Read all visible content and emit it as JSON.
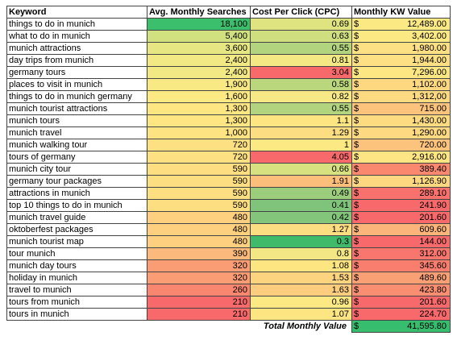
{
  "headers": {
    "keyword": "Keyword",
    "searches": "Avg. Monthly Searches",
    "cpc": "Cost Per Click (CPC)",
    "value": "Monthly KW Value"
  },
  "currency_symbol": "$",
  "rows": [
    {
      "keyword": "things to do in munich",
      "searches": "18,100",
      "cpc": "0.69",
      "value": "12,489.00",
      "searches_color": "#3cbf6d",
      "cpc_color": "#dfe380",
      "value_color": "#fbe984"
    },
    {
      "keyword": "what to do in munich",
      "searches": "5,400",
      "cpc": "0.63",
      "value": "3,402.00",
      "searches_color": "#d2e180",
      "cpc_color": "#cfdf80",
      "value_color": "#fbe984"
    },
    {
      "keyword": "munich attractions",
      "searches": "3,600",
      "cpc": "0.55",
      "value": "1,980.00",
      "searches_color": "#e6e682",
      "cpc_color": "#b3d47e",
      "value_color": "#fde083"
    },
    {
      "keyword": "day trips from munich",
      "searches": "2,400",
      "cpc": "0.81",
      "value": "1,944.00",
      "searches_color": "#f2e884",
      "cpc_color": "#f4e884",
      "value_color": "#fde083"
    },
    {
      "keyword": "germany tours",
      "searches": "2,400",
      "cpc": "3.04",
      "value": "7,296.00",
      "searches_color": "#f2e884",
      "cpc_color": "#f8696b",
      "value_color": "#fde783"
    },
    {
      "keyword": "places to visit in munich",
      "searches": "1,900",
      "cpc": "0.58",
      "value": "1,102.00",
      "searches_color": "#f9e984",
      "cpc_color": "#bbd77e",
      "value_color": "#fdd881"
    },
    {
      "keyword": "things to do in munich germany",
      "searches": "1,600",
      "cpc": "0.82",
      "value": "1,312,00",
      "searches_color": "#fde983",
      "cpc_color": "#f6e884",
      "value_color": "#fdda81"
    },
    {
      "keyword": "munich tourist attractions",
      "searches": "1,300",
      "cpc": "0.55",
      "value": "715.00",
      "searches_color": "#fee683",
      "cpc_color": "#b3d47e",
      "value_color": "#fcc37d"
    },
    {
      "keyword": "munich tours",
      "searches": "1,300",
      "cpc": "1.1",
      "value": "1,430.00",
      "searches_color": "#fee683",
      "cpc_color": "#fde582",
      "value_color": "#fddb81"
    },
    {
      "keyword": "munich travel",
      "searches": "1,000",
      "cpc": "1.29",
      "value": "1,290.00",
      "searches_color": "#fee382",
      "cpc_color": "#fddd81",
      "value_color": "#fdd981"
    },
    {
      "keyword": "munich walking tour",
      "searches": "720",
      "cpc": "1",
      "value": "720.00",
      "searches_color": "#fde082",
      "cpc_color": "#fde983",
      "value_color": "#fcc37d"
    },
    {
      "keyword": "tours of germany",
      "searches": "720",
      "cpc": "4.05",
      "value": "2,916.00",
      "searches_color": "#fde082",
      "cpc_color": "#f8696b",
      "value_color": "#fde583"
    },
    {
      "keyword": "munich city tour",
      "searches": "590",
      "cpc": "0.66",
      "value": "389.40",
      "searches_color": "#fdde81",
      "cpc_color": "#d7e180",
      "value_color": "#f9886f"
    },
    {
      "keyword": "germany tour packages",
      "searches": "590",
      "cpc": "1.91",
      "value": "1,126.90",
      "searches_color": "#fdde81",
      "cpc_color": "#fcbf7b",
      "value_color": "#fdd881"
    },
    {
      "keyword": "attractions in munich",
      "searches": "590",
      "cpc": "0.49",
      "value": "289.10",
      "searches_color": "#fdde81",
      "cpc_color": "#9ccd7c",
      "value_color": "#f8716c"
    },
    {
      "keyword": "top 10 things to do in munich",
      "searches": "590",
      "cpc": "0.41",
      "value": "241.90",
      "searches_color": "#fdde81",
      "cpc_color": "#7fc47a",
      "value_color": "#f8696b"
    },
    {
      "keyword": "munich travel guide",
      "searches": "480",
      "cpc": "0.42",
      "value": "201.60",
      "searches_color": "#fcd07f",
      "cpc_color": "#83c57a",
      "value_color": "#f8696b"
    },
    {
      "keyword": "oktoberfest packages",
      "searches": "480",
      "cpc": "1.27",
      "value": "609.60",
      "searches_color": "#fcd07f",
      "cpc_color": "#fddd81",
      "value_color": "#fbb47a"
    },
    {
      "keyword": "munich tourist map",
      "searches": "480",
      "cpc": "0.3",
      "value": "144.00",
      "searches_color": "#fcd07f",
      "cpc_color": "#3fba6a",
      "value_color": "#f8696b"
    },
    {
      "keyword": "tour munich",
      "searches": "390",
      "cpc": "0.8",
      "value": "312.00",
      "searches_color": "#fbb97b",
      "cpc_color": "#f2e784",
      "value_color": "#f8766d"
    },
    {
      "keyword": "munich day tours",
      "searches": "320",
      "cpc": "1.08",
      "value": "345.60",
      "searches_color": "#fa9c74",
      "cpc_color": "#fde582",
      "value_color": "#f97e6e"
    },
    {
      "keyword": "holiday in munich",
      "searches": "320",
      "cpc": "1.53",
      "value": "489.60",
      "searches_color": "#fa9c74",
      "cpc_color": "#fcd37f",
      "value_color": "#faa075"
    },
    {
      "keyword": "travel to munich",
      "searches": "260",
      "cpc": "1.63",
      "value": "423.80",
      "searches_color": "#f98770",
      "cpc_color": "#fccd7e",
      "value_color": "#f98e70"
    },
    {
      "keyword": "tours from munich",
      "searches": "210",
      "cpc": "0.96",
      "value": "201.60",
      "searches_color": "#f8696b",
      "cpc_color": "#fde983",
      "value_color": "#f8696b"
    },
    {
      "keyword": "tours in munich",
      "searches": "210",
      "cpc": "1.07",
      "value": "224.70",
      "searches_color": "#f8696b",
      "cpc_color": "#fde582",
      "value_color": "#f8696b"
    }
  ],
  "total": {
    "label": "Total Monthly Value",
    "value": "41,595.80",
    "color": "#37bd6e"
  }
}
